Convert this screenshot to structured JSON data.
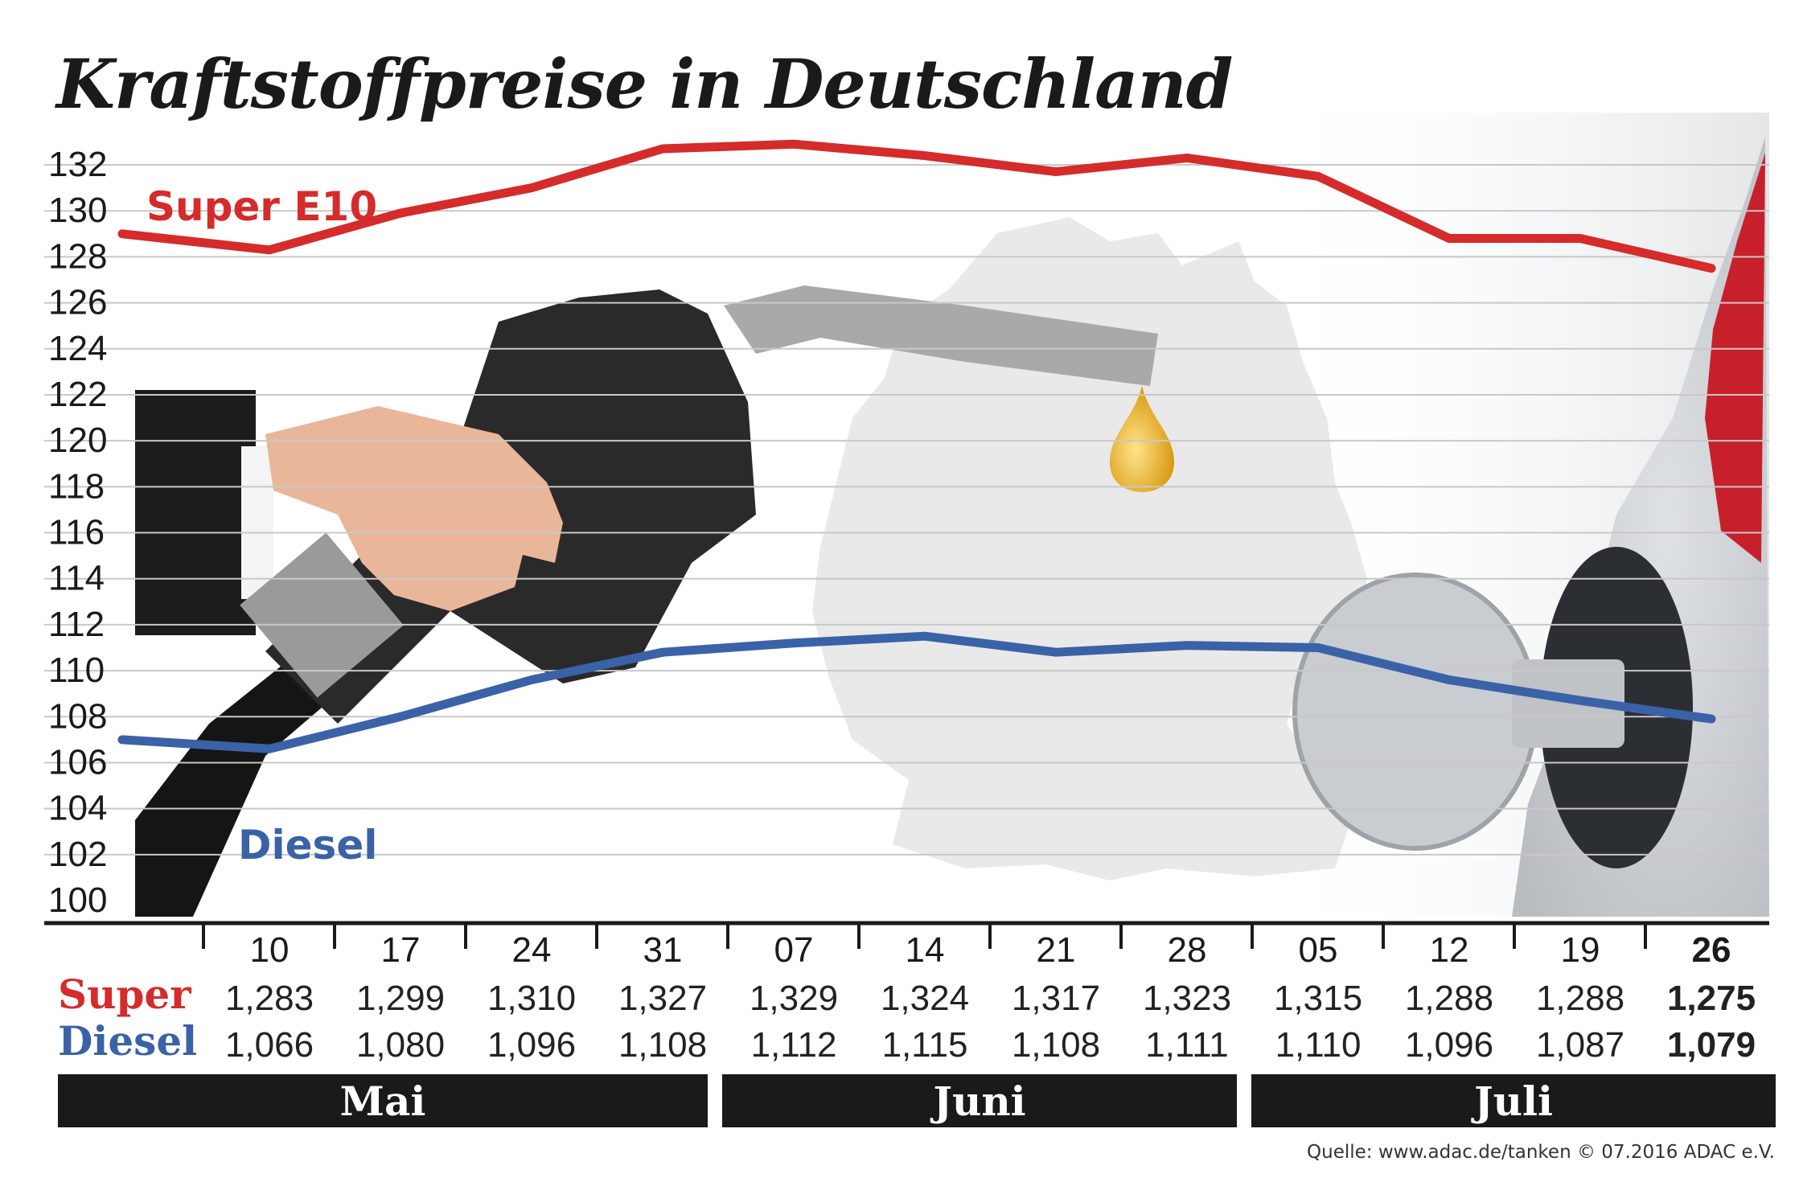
{
  "header": {
    "title": "Kraftstoffpreise in Deutschland"
  },
  "chart_data": {
    "type": "line",
    "title": "Kraftstoffpreise in Deutschland",
    "categories": [
      "10",
      "17",
      "24",
      "31",
      "07",
      "14",
      "21",
      "28",
      "05",
      "12",
      "19",
      "26"
    ],
    "yticks": [
      "132",
      "130",
      "128",
      "126",
      "124",
      "122",
      "120",
      "118",
      "116",
      "114",
      "112",
      "110",
      "108",
      "106",
      "104",
      "102",
      "100"
    ],
    "ylim": [
      100,
      132
    ],
    "series": [
      {
        "name": "Super E10",
        "color": "#d52b2b",
        "values": [
          128.3,
          129.9,
          131.0,
          132.7,
          132.9,
          132.4,
          131.7,
          132.3,
          131.5,
          128.8,
          128.8,
          127.5
        ]
      },
      {
        "name": "Diesel",
        "color": "#3a62a7",
        "values": [
          106.6,
          108.0,
          109.6,
          110.8,
          111.2,
          111.5,
          110.8,
          111.1,
          111.0,
          109.6,
          108.7,
          107.9
        ]
      }
    ],
    "table": {
      "rows": [
        {
          "label": "Super",
          "color": "#d52b2b",
          "values": [
            "1,283",
            "1,299",
            "1,310",
            "1,327",
            "1,329",
            "1,324",
            "1,317",
            "1,323",
            "1,315",
            "1,288",
            "1,288",
            "1,275"
          ]
        },
        {
          "label": "Diesel",
          "color": "#3a62a7",
          "values": [
            "1,066",
            "1,080",
            "1,096",
            "1,108",
            "1,112",
            "1,115",
            "1,108",
            "1,111",
            "1,110",
            "1,096",
            "1,087",
            "1,079"
          ]
        }
      ]
    },
    "months": [
      "Mai",
      "Juni",
      "Juli"
    ]
  },
  "source": "Quelle: www.adac.de/tanken   © 07.2016  ADAC e.V."
}
